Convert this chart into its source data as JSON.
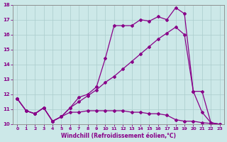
{
  "title": "",
  "xlabel": "Windchill (Refroidissement éolien,°C)",
  "ylabel": "",
  "background_color": "#cce8e8",
  "line_color": "#880088",
  "xlim": [
    -0.5,
    23.5
  ],
  "ylim": [
    10,
    18
  ],
  "yticks": [
    10,
    11,
    12,
    13,
    14,
    15,
    16,
    17,
    18
  ],
  "xticks": [
    0,
    1,
    2,
    3,
    4,
    5,
    6,
    7,
    8,
    9,
    10,
    11,
    12,
    13,
    14,
    15,
    16,
    17,
    18,
    19,
    20,
    21,
    22,
    23
  ],
  "line1_x": [
    0,
    1,
    2,
    3,
    4,
    5,
    6,
    7,
    8,
    9,
    10,
    11,
    12,
    13,
    14,
    15,
    16,
    17,
    18,
    19,
    20,
    21,
    22,
    23
  ],
  "line1_y": [
    11.7,
    10.9,
    10.7,
    11.1,
    10.2,
    10.5,
    10.8,
    10.8,
    10.9,
    10.9,
    10.9,
    10.9,
    10.9,
    10.8,
    10.8,
    10.7,
    10.7,
    10.6,
    10.3,
    10.2,
    10.2,
    10.1,
    10.05,
    10.0
  ],
  "line2_x": [
    0,
    1,
    2,
    3,
    4,
    5,
    6,
    7,
    8,
    9,
    10,
    11,
    12,
    13,
    14,
    15,
    16,
    17,
    18,
    19,
    20,
    21,
    22,
    23
  ],
  "line2_y": [
    11.7,
    10.9,
    10.7,
    11.1,
    10.2,
    10.5,
    11.1,
    11.5,
    11.9,
    12.3,
    12.8,
    13.2,
    13.7,
    14.2,
    14.7,
    15.2,
    15.7,
    16.1,
    16.5,
    16.0,
    12.2,
    10.8,
    10.1,
    10.0
  ],
  "line3_x": [
    0,
    1,
    2,
    3,
    4,
    5,
    6,
    7,
    8,
    9,
    10,
    11,
    12,
    13,
    14,
    15,
    16,
    17,
    18,
    19,
    20,
    21,
    22,
    23
  ],
  "line3_y": [
    11.7,
    10.9,
    10.7,
    11.1,
    10.2,
    10.5,
    11.1,
    11.8,
    12.0,
    12.5,
    14.4,
    16.6,
    16.6,
    16.6,
    17.0,
    16.9,
    17.2,
    17.0,
    17.8,
    17.4,
    12.2,
    12.2,
    10.1,
    10.0
  ],
  "marker": "D",
  "markersize": 2.0,
  "linewidth": 0.9
}
